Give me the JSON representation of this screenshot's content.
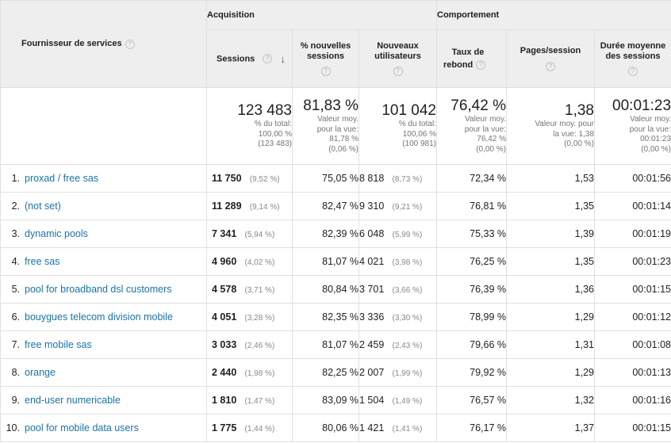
{
  "header": {
    "dimension": "Fournisseur de services",
    "groups": {
      "acquisition": "Acquisition",
      "behaviour": "Comportement"
    },
    "columns": {
      "sessions": "Sessions",
      "new_sessions": "% nouvelles sessions",
      "new_users": "Nouveaux utilisateurs",
      "bounce_line1": "Taux de",
      "bounce_line2": "rebond",
      "pages_session": "Pages/session",
      "avg_duration": "Durée moyenne des sessions"
    },
    "help_icon": "question-icon",
    "sort_icon": "arrow-down-icon"
  },
  "totals": {
    "sessions": {
      "value": "123 483",
      "l1": "% du total:",
      "l2": "100,00 %",
      "l3": "(123 483)"
    },
    "new_sessions": {
      "value": "81,83 %",
      "l1": "Valeur moy.",
      "l2": "pour la vue:",
      "l3": "81,78 %",
      "l4": "(0,06 %)"
    },
    "new_users": {
      "value": "101 042",
      "l1": "% du total:",
      "l2": "100,06 %",
      "l3": "(100 981)"
    },
    "bounce": {
      "value": "76,42 %",
      "l1": "Valeur moy.",
      "l2": "pour la vue:",
      "l3": "76,42 %",
      "l4": "(0,00 %)"
    },
    "pages_session": {
      "value": "1,38",
      "l1": "Valeur moy. pour",
      "l2": "la vue: 1,38",
      "l3": "(0,00 %)"
    },
    "avg_duration": {
      "value": "00:01:23",
      "l1": "Valeur moy.",
      "l2": "pour la vue:",
      "l3": "00:01:23",
      "l4": "(0,00 %)"
    }
  },
  "rows": [
    {
      "idx": "1.",
      "name": "proxad / free sas",
      "sessions": "11 750",
      "sessions_pct": "(9,52 %)",
      "new_sessions": "75,05 %",
      "new_users": "8 818",
      "new_users_pct": "(8,73 %)",
      "bounce": "72,34 %",
      "pages": "1,53",
      "duration": "00:01:56"
    },
    {
      "idx": "2.",
      "name": "(not set)",
      "sessions": "11 289",
      "sessions_pct": "(9,14 %)",
      "new_sessions": "82,47 %",
      "new_users": "9 310",
      "new_users_pct": "(9,21 %)",
      "bounce": "76,81 %",
      "pages": "1,35",
      "duration": "00:01:14"
    },
    {
      "idx": "3.",
      "name": "dynamic pools",
      "sessions": "7 341",
      "sessions_pct": "(5,94 %)",
      "new_sessions": "82,39 %",
      "new_users": "6 048",
      "new_users_pct": "(5,99 %)",
      "bounce": "75,33 %",
      "pages": "1,39",
      "duration": "00:01:19"
    },
    {
      "idx": "4.",
      "name": "free sas",
      "sessions": "4 960",
      "sessions_pct": "(4,02 %)",
      "new_sessions": "81,07 %",
      "new_users": "4 021",
      "new_users_pct": "(3,98 %)",
      "bounce": "76,25 %",
      "pages": "1,35",
      "duration": "00:01:23"
    },
    {
      "idx": "5.",
      "name": "pool for broadband dsl customers",
      "sessions": "4 578",
      "sessions_pct": "(3,71 %)",
      "new_sessions": "80,84 %",
      "new_users": "3 701",
      "new_users_pct": "(3,66 %)",
      "bounce": "76,39 %",
      "pages": "1,36",
      "duration": "00:01:15"
    },
    {
      "idx": "6.",
      "name": "bouygues telecom division mobile",
      "sessions": "4 051",
      "sessions_pct": "(3,28 %)",
      "new_sessions": "82,35 %",
      "new_users": "3 336",
      "new_users_pct": "(3,30 %)",
      "bounce": "78,99 %",
      "pages": "1,29",
      "duration": "00:01:12"
    },
    {
      "idx": "7.",
      "name": "free mobile sas",
      "sessions": "3 033",
      "sessions_pct": "(2,46 %)",
      "new_sessions": "81,07 %",
      "new_users": "2 459",
      "new_users_pct": "(2,43 %)",
      "bounce": "79,66 %",
      "pages": "1,31",
      "duration": "00:01:08"
    },
    {
      "idx": "8.",
      "name": "orange",
      "sessions": "2 440",
      "sessions_pct": "(1,98 %)",
      "new_sessions": "82,25 %",
      "new_users": "2 007",
      "new_users_pct": "(1,99 %)",
      "bounce": "79,92 %",
      "pages": "1,29",
      "duration": "00:01:13"
    },
    {
      "idx": "9.",
      "name": "end-user numericable",
      "sessions": "1 810",
      "sessions_pct": "(1,47 %)",
      "new_sessions": "83,09 %",
      "new_users": "1 504",
      "new_users_pct": "(1,49 %)",
      "bounce": "76,57 %",
      "pages": "1,32",
      "duration": "00:01:16"
    },
    {
      "idx": "10.",
      "name": "pool for mobile data users",
      "sessions": "1 775",
      "sessions_pct": "(1,44 %)",
      "new_sessions": "80,06 %",
      "new_users": "1 421",
      "new_users_pct": "(1,41 %)",
      "bounce": "76,17 %",
      "pages": "1,37",
      "duration": "00:01:15"
    }
  ]
}
